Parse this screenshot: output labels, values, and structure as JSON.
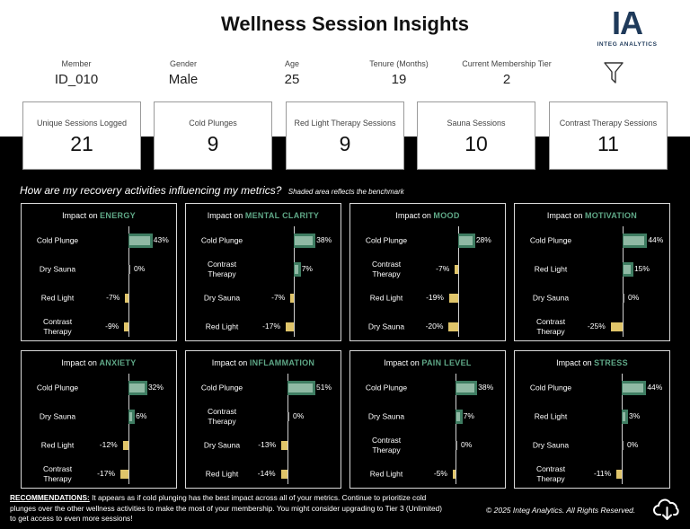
{
  "header": {
    "title": "Wellness Session Insights"
  },
  "logo": {
    "mark": "IA",
    "name": "INTEG ANALYTICS"
  },
  "member_info": [
    {
      "label": "Member",
      "value": "ID_010"
    },
    {
      "label": "Gender",
      "value": "Male"
    },
    {
      "label": "Age",
      "value": "25"
    },
    {
      "label": "Tenure (Months)",
      "value": "19"
    },
    {
      "label": "Current Membership Tier",
      "value": "2"
    }
  ],
  "filter_icon": "filter-funnel-icon",
  "kpis": [
    {
      "label": "Unique Sessions Logged",
      "value": "21"
    },
    {
      "label": "Cold Plunges",
      "value": "9"
    },
    {
      "label": "Red Light Therapy Sessions",
      "value": "9"
    },
    {
      "label": "Sauna Sessions",
      "value": "10"
    },
    {
      "label": "Contrast Therapy Sessions",
      "value": "11"
    }
  ],
  "section": {
    "question": "How are my recovery activities influencing my metrics?",
    "note": "Shaded area reflects the benchmark"
  },
  "colors": {
    "positive_bar": "#8fb9a4",
    "positive_benchmark": "#3f7d62",
    "negative_bar": "#e0c56a",
    "negative_benchmark": "#8a6a2a",
    "metric_text": "#5fa887"
  },
  "panels": [
    {
      "prefix": "Impact on",
      "metric": "ENERGY",
      "rows": [
        {
          "label": "Cold Plunge",
          "value": 43,
          "text": "43%"
        },
        {
          "label": "Dry Sauna",
          "value": 0,
          "text": "0%"
        },
        {
          "label": "Red Light",
          "value": -7,
          "text": "-7%"
        },
        {
          "label": "Contrast\nTherapy",
          "value": -9,
          "text": "-9%"
        }
      ]
    },
    {
      "prefix": "Impact on",
      "metric": "MENTAL CLARITY",
      "rows": [
        {
          "label": "Cold Plunge",
          "value": 38,
          "text": "38%"
        },
        {
          "label": "Contrast\nTherapy",
          "value": 7,
          "text": "7%"
        },
        {
          "label": "Dry Sauna",
          "value": -7,
          "text": "-7%"
        },
        {
          "label": "Red Light",
          "value": -17,
          "text": "-17%"
        }
      ]
    },
    {
      "prefix": "Impact on",
      "metric": "MOOD",
      "rows": [
        {
          "label": "Cold Plunge",
          "value": 28,
          "text": "28%"
        },
        {
          "label": "Contrast\nTherapy",
          "value": -7,
          "text": "-7%"
        },
        {
          "label": "Red Light",
          "value": -19,
          "text": "-19%"
        },
        {
          "label": "Dry Sauna",
          "value": -20,
          "text": "-20%"
        }
      ]
    },
    {
      "prefix": "Impact on",
      "metric": "MOTIVATION",
      "rows": [
        {
          "label": "Cold Plunge",
          "value": 44,
          "text": "44%"
        },
        {
          "label": "Red Light",
          "value": 15,
          "text": "15%"
        },
        {
          "label": "Dry Sauna",
          "value": 0,
          "text": "0%"
        },
        {
          "label": "Contrast\nTherapy",
          "value": -25,
          "text": "-25%"
        }
      ]
    },
    {
      "prefix": "Impact on",
      "metric": "ANXIETY",
      "rows": [
        {
          "label": "Cold Plunge",
          "value": 32,
          "text": "32%"
        },
        {
          "label": "Dry Sauna",
          "value": 6,
          "text": "6%"
        },
        {
          "label": "Red Light",
          "value": -12,
          "text": "-12%"
        },
        {
          "label": "Contrast\nTherapy",
          "value": -17,
          "text": "-17%"
        }
      ]
    },
    {
      "prefix": "Impact on",
      "metric": "INFLAMMATION",
      "rows": [
        {
          "label": "Cold Plunge",
          "value": 51,
          "text": "51%"
        },
        {
          "label": "Contrast\nTherapy",
          "value": 0,
          "text": "0%"
        },
        {
          "label": "Dry Sauna",
          "value": -13,
          "text": "-13%"
        },
        {
          "label": "Red Light",
          "value": -14,
          "text": "-14%"
        }
      ]
    },
    {
      "prefix": "Impact on",
      "metric": "PAIN LEVEL",
      "rows": [
        {
          "label": "Cold Plunge",
          "value": 38,
          "text": "38%"
        },
        {
          "label": "Dry Sauna",
          "value": 7,
          "text": "7%"
        },
        {
          "label": "Contrast\nTherapy",
          "value": 0,
          "text": "0%"
        },
        {
          "label": "Red Light",
          "value": -5,
          "text": "-5%"
        }
      ]
    },
    {
      "prefix": "Impact on",
      "metric": "STRESS",
      "rows": [
        {
          "label": "Cold Plunge",
          "value": 44,
          "text": "44%"
        },
        {
          "label": "Red Light",
          "value": 3,
          "text": "3%"
        },
        {
          "label": "Dry Sauna",
          "value": 0,
          "text": "0%"
        },
        {
          "label": "Contrast\nTherapy",
          "value": -11,
          "text": "-11%"
        }
      ]
    }
  ],
  "footer": {
    "reco_head": "RECOMMENDATIONS:",
    "reco_text": " It appears as if cold plunging has the best impact across all of your metrics. Continue to prioritize cold plunges over the other wellness activities to make the most of your membership. You might consider upgrading to Tier 3 (Unlimited) to get access to even more sessions!",
    "copyright": "© 2025 Integ Analytics. All Rights Reserved.",
    "download_icon": "cloud-download-icon"
  }
}
